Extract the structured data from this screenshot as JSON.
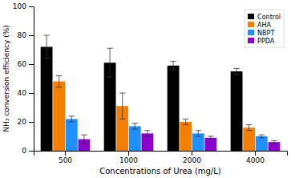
{
  "chart_data": {
    "type": "bar",
    "xlabel": "Concentrations of Urea (mg/L)",
    "ylabel": "NH₃ conversion efficiency (%)",
    "categories": [
      "500",
      "1000",
      "2000",
      "4000"
    ],
    "series": [
      {
        "name": "Control",
        "color": "#000000",
        "values": [
          72,
          61,
          59,
          55
        ],
        "errors": [
          8,
          10,
          3,
          2
        ]
      },
      {
        "name": "AHA",
        "color": "#f57f00",
        "values": [
          48,
          31,
          20,
          16
        ],
        "errors": [
          4,
          9,
          2,
          2
        ]
      },
      {
        "name": "NBPT",
        "color": "#1e90ff",
        "values": [
          22,
          17,
          12,
          10
        ],
        "errors": [
          2,
          2,
          2,
          1
        ]
      },
      {
        "name": "PPDA",
        "color": "#8b00cc",
        "values": [
          8,
          12,
          9,
          6
        ],
        "errors": [
          3,
          2,
          1,
          1
        ]
      }
    ],
    "ylim": [
      0,
      100
    ],
    "yticks": [
      0,
      20,
      40,
      60,
      80,
      100
    ],
    "grid": false,
    "legend": "upper right"
  }
}
